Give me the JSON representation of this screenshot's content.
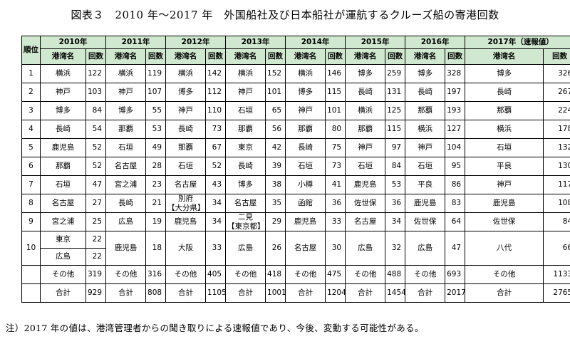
{
  "title": "図表３　2010 年～2017 年　外国船社及び日本船社が運航するクルーズ船の寄港回数",
  "header": {
    "rank": "順位",
    "years": [
      "2010年",
      "2011年",
      "2012年",
      "2013年",
      "2014年",
      "2015年",
      "2016年",
      "2017年（速報値）"
    ],
    "port_label": "港湾名",
    "count_label": "回数"
  },
  "rows": [
    {
      "rank": "1",
      "cells": [
        [
          "横浜",
          "122"
        ],
        [
          "横浜",
          "119"
        ],
        [
          "横浜",
          "142"
        ],
        [
          "横浜",
          "152"
        ],
        [
          "横浜",
          "146"
        ],
        [
          "博多",
          "259"
        ],
        [
          "博多",
          "328"
        ],
        [
          "博多",
          "326"
        ]
      ]
    },
    {
      "rank": "2",
      "cells": [
        [
          "神戸",
          "103"
        ],
        [
          "神戸",
          "107"
        ],
        [
          "博多",
          "112"
        ],
        [
          "神戸",
          "101"
        ],
        [
          "博多",
          "115"
        ],
        [
          "長崎",
          "131"
        ],
        [
          "長崎",
          "197"
        ],
        [
          "長崎",
          "267"
        ]
      ]
    },
    {
      "rank": "3",
      "cells": [
        [
          "博多",
          "84"
        ],
        [
          "博多",
          "55"
        ],
        [
          "神戸",
          "110"
        ],
        [
          "石垣",
          "65"
        ],
        [
          "神戸",
          "101"
        ],
        [
          "横浜",
          "125"
        ],
        [
          "那覇",
          "193"
        ],
        [
          "那覇",
          "224"
        ]
      ]
    },
    {
      "rank": "4",
      "cells": [
        [
          "長崎",
          "54"
        ],
        [
          "那覇",
          "53"
        ],
        [
          "長崎",
          "73"
        ],
        [
          "那覇",
          "56"
        ],
        [
          "那覇",
          "80"
        ],
        [
          "那覇",
          "115"
        ],
        [
          "横浜",
          "127"
        ],
        [
          "横浜",
          "178"
        ]
      ]
    },
    {
      "rank": "5",
      "cells": [
        [
          "鹿児島",
          "52"
        ],
        [
          "石垣",
          "49"
        ],
        [
          "那覇",
          "67"
        ],
        [
          "東京",
          "42"
        ],
        [
          "長崎",
          "75"
        ],
        [
          "神戸",
          "97"
        ],
        [
          "神戸",
          "104"
        ],
        [
          "石垣",
          "132"
        ]
      ]
    },
    {
      "rank": "6",
      "cells": [
        [
          "那覇",
          "52"
        ],
        [
          "名古屋",
          "28"
        ],
        [
          "石垣",
          "52"
        ],
        [
          "長崎",
          "39"
        ],
        [
          "石垣",
          "73"
        ],
        [
          "石垣",
          "84"
        ],
        [
          "石垣",
          "95"
        ],
        [
          "平良",
          "130"
        ]
      ]
    },
    {
      "rank": "7",
      "cells": [
        [
          "石垣",
          "47"
        ],
        [
          "宮之浦",
          "23"
        ],
        [
          "名古屋",
          "43"
        ],
        [
          "博多",
          "38"
        ],
        [
          "小樽",
          "41"
        ],
        [
          "鹿児島",
          "53"
        ],
        [
          "平良",
          "86"
        ],
        [
          "神戸",
          "117"
        ]
      ]
    },
    {
      "rank": "8",
      "cells": [
        [
          "名古屋",
          "27"
        ],
        [
          "長崎",
          "21"
        ],
        [
          [
            "別府",
            "【大分県】"
          ],
          "34"
        ],
        [
          "名古屋",
          "35"
        ],
        [
          "函館",
          "36"
        ],
        [
          "佐世保",
          "36"
        ],
        [
          "鹿児島",
          "83"
        ],
        [
          "鹿児島",
          "108"
        ]
      ]
    },
    {
      "rank": "9",
      "cells": [
        [
          "宮之浦",
          "25"
        ],
        [
          "広島",
          "19"
        ],
        [
          "鹿児島",
          "34"
        ],
        [
          [
            "二見",
            "【東京都】"
          ],
          "29"
        ],
        [
          "鹿児島",
          "33"
        ],
        [
          "名古屋",
          "34"
        ],
        [
          "佐世保",
          "64"
        ],
        [
          "佐世保",
          "84"
        ]
      ]
    }
  ],
  "rank10": {
    "rank": "10",
    "first_year": [
      [
        "東京",
        "22"
      ],
      [
        "広島",
        "22"
      ]
    ],
    "cells": [
      [
        "鹿児島",
        "18"
      ],
      [
        "大阪",
        "33"
      ],
      [
        "広島",
        "26"
      ],
      [
        "名古屋",
        "30"
      ],
      [
        "広島",
        "32"
      ],
      [
        "広島",
        "47"
      ],
      [
        "八代",
        "66"
      ]
    ]
  },
  "others": {
    "label": "その他",
    "values": [
      "319",
      "316",
      "405",
      "418",
      "475",
      "488",
      "693",
      "1133"
    ]
  },
  "total": {
    "label": "合計",
    "values": [
      "929",
      "808",
      "1105",
      "1001",
      "1204",
      "1454",
      "2017",
      "2765"
    ]
  },
  "note": "注）2017 年の値は、港湾管理者からの聞き取りによる速報値であり、今後、変動する可能性がある。"
}
